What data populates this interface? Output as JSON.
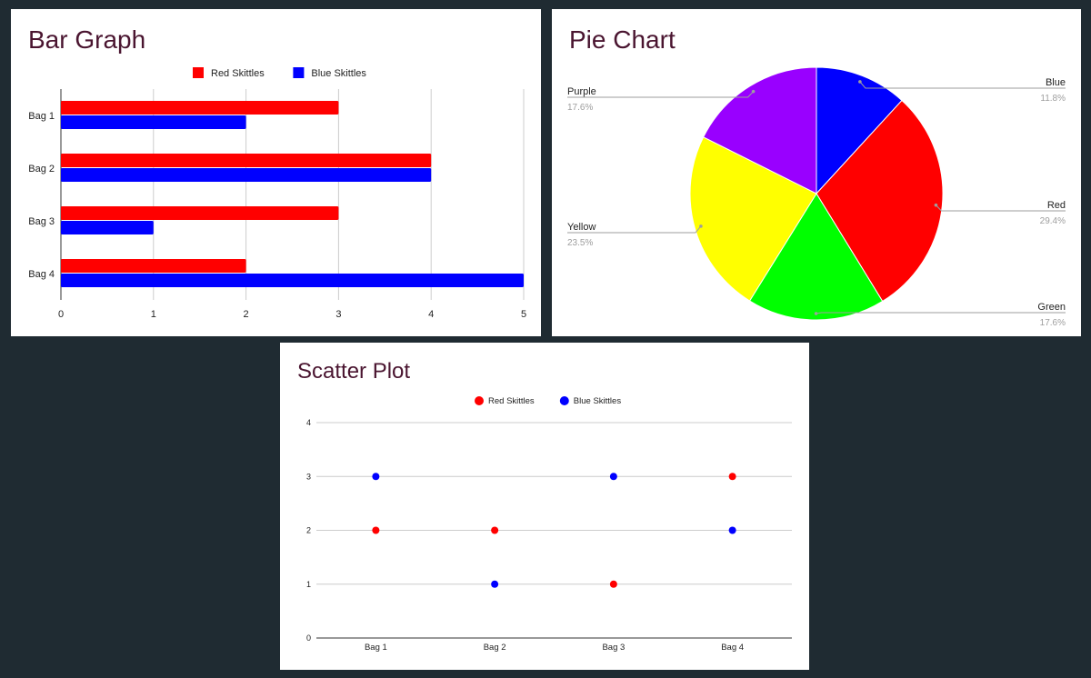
{
  "colors": {
    "red": "#ff0000",
    "blue": "#0000ff",
    "green": "#00ff00",
    "yellow": "#ffff00",
    "purple": "#9900ff",
    "title": "#4a1530",
    "background": "#1f2b32"
  },
  "chart_data": [
    {
      "type": "bar",
      "orientation": "horizontal",
      "title": "Bar Graph",
      "categories": [
        "Bag 1",
        "Bag 2",
        "Bag 3",
        "Bag 4"
      ],
      "series": [
        {
          "name": "Red Skittles",
          "color": "#ff0000",
          "values": [
            3,
            4,
            3,
            2
          ]
        },
        {
          "name": "Blue Skittles",
          "color": "#0000ff",
          "values": [
            2,
            4,
            1,
            5
          ]
        }
      ],
      "xlim": [
        0,
        5
      ],
      "xticks": [
        "0",
        "1",
        "2",
        "3",
        "4",
        "5"
      ],
      "grid": true,
      "legend": "top"
    },
    {
      "type": "pie",
      "title": "Pie Chart",
      "slices": [
        {
          "label": "Blue",
          "value": 11.8,
          "percent_label": "11.8%",
          "color": "#0000ff"
        },
        {
          "label": "Red",
          "value": 29.4,
          "percent_label": "29.4%",
          "color": "#ff0000"
        },
        {
          "label": "Green",
          "value": 17.6,
          "percent_label": "17.6%",
          "color": "#00ff00"
        },
        {
          "label": "Yellow",
          "value": 23.5,
          "percent_label": "23.5%",
          "color": "#ffff00"
        },
        {
          "label": "Purple",
          "value": 17.6,
          "percent_label": "17.6%",
          "color": "#9900ff"
        }
      ],
      "legend": "labeled slices"
    },
    {
      "type": "scatter",
      "title": "Scatter Plot",
      "categories": [
        "Bag 1",
        "Bag 2",
        "Bag 3",
        "Bag 4"
      ],
      "series": [
        {
          "name": "Red Skittles",
          "color": "#ff0000",
          "values": [
            2,
            2,
            1,
            3
          ]
        },
        {
          "name": "Blue Skittles",
          "color": "#0000ff",
          "values": [
            3,
            1,
            3,
            2
          ]
        }
      ],
      "ylim": [
        0,
        4
      ],
      "yticks": [
        "0",
        "1",
        "2",
        "3",
        "4"
      ],
      "grid": true,
      "legend": "top"
    }
  ]
}
